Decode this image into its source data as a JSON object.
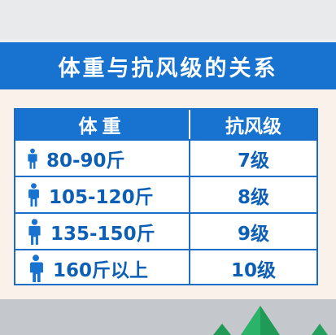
{
  "title": "体重与抗风级的关系",
  "table": {
    "header_weight": "体重",
    "header_level": "抗风级",
    "rows": [
      {
        "weight": "80-90斤",
        "level": "7级",
        "icon_scale": 0.6
      },
      {
        "weight": "105-120斤",
        "level": "8级",
        "icon_scale": 0.72
      },
      {
        "weight": "135-150斤",
        "level": "9级",
        "icon_scale": 0.86
      },
      {
        "weight": "160斤以上",
        "level": "10级",
        "icon_scale": 1.0
      }
    ]
  },
  "icons": {
    "person": "person-icon",
    "tree": "tree-icon"
  },
  "colors": {
    "banner": "#1773cf",
    "text": "#0d5fb6",
    "tree": "#1f9a57"
  }
}
